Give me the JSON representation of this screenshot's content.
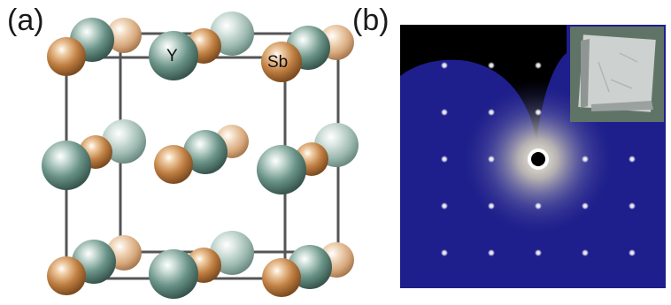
{
  "figure": {
    "panel_a": {
      "label": "(a)",
      "atoms": [
        {
          "symbol": "Y",
          "color": "#5f877c"
        },
        {
          "symbol": "Sb",
          "color": "#b8753a"
        }
      ]
    },
    "panel_b": {
      "label": "(b)",
      "background_color": "#1e1e8c",
      "inset": "crystal-photo"
    }
  }
}
